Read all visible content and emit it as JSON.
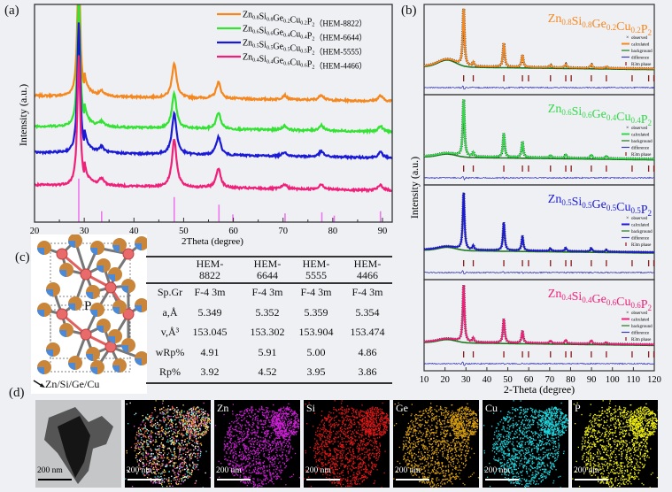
{
  "panel_labels": {
    "a": "(a)",
    "b": "(b)",
    "c": "(c)",
    "d": "(d)"
  },
  "colors": {
    "HEM-8822": "#f5871f",
    "HEM-6644": "#33e233",
    "HEM-5555": "#1a1ad6",
    "HEM-4466": "#f0207a",
    "reference": "#ee77ee",
    "tick_marks": "#8b1a1a",
    "difference": "#3b3bb5",
    "background_line": "#1f7a1f"
  },
  "chart_data": [
    {
      "panel": "a",
      "type": "line",
      "xlabel": "2Theta (degree)",
      "ylabel": "Intensity (a.u.)",
      "xlim": [
        20,
        92
      ],
      "xticks": [
        20,
        30,
        40,
        50,
        60,
        70,
        80,
        90
      ],
      "grid": false,
      "legend": "top-right",
      "series": [
        {
          "name": "Zn0.8Si0.8Ge0.2Cu0.2P2 (HEM-8822)",
          "formula": [
            [
              "Zn",
              "0.8"
            ],
            [
              "Si",
              "0.8"
            ],
            [
              "Ge",
              "0.2"
            ],
            [
              "Cu",
              "0.2"
            ],
            [
              "P",
              "2"
            ]
          ],
          "tag": "（HEM-8822）",
          "color": "#f5871f",
          "offset": 58,
          "peaks": [
            [
              28.9,
              60
            ],
            [
              33.5,
              2
            ],
            [
              48.1,
              16
            ],
            [
              57.0,
              7.5
            ],
            [
              70.3,
              2
            ],
            [
              77.7,
              2.5
            ],
            [
              89.6,
              2.5
            ]
          ]
        },
        {
          "name": "Zn0.6Si0.6Ge0.4Cu0.4P2 (HEM-6644)",
          "formula": [
            [
              "Zn",
              "0.6"
            ],
            [
              "Si",
              "0.6"
            ],
            [
              "Ge",
              "0.4"
            ],
            [
              "Cu",
              "0.4"
            ],
            [
              "P",
              "2"
            ]
          ],
          "tag": "（HEM-6644）",
          "color": "#33e233",
          "offset": 44,
          "peaks": [
            [
              28.9,
              60
            ],
            [
              33.5,
              2
            ],
            [
              48.1,
              16
            ],
            [
              57.0,
              7.5
            ],
            [
              70.3,
              2
            ],
            [
              77.7,
              2.5
            ],
            [
              89.6,
              2.5
            ]
          ]
        },
        {
          "name": "Zn0.5Si0.5Ge0.5Cu0.5P2 (HEM-5555)",
          "formula": [
            [
              "Zn",
              "0.5"
            ],
            [
              "Si",
              "0.5"
            ],
            [
              "Ge",
              "0.5"
            ],
            [
              "Cu",
              "0.5"
            ],
            [
              "P",
              "2"
            ]
          ],
          "tag": "（HEM-5555）",
          "color": "#1a1ad6",
          "offset": 32,
          "peaks": [
            [
              28.9,
              60
            ],
            [
              33.5,
              2.5
            ],
            [
              48.1,
              19
            ],
            [
              57.0,
              8.5
            ],
            [
              70.3,
              2
            ],
            [
              77.7,
              2.5
            ],
            [
              89.6,
              2.5
            ]
          ]
        },
        {
          "name": "Zn0.4Si0.4Ge0.6Cu0.6P2 (HEM-4466)",
          "formula": [
            [
              "Zn",
              "0.4"
            ],
            [
              "Si",
              "0.4"
            ],
            [
              "Ge",
              "0.6"
            ],
            [
              "Cu",
              "0.6"
            ],
            [
              "P",
              "2"
            ]
          ],
          "tag": "（HEM-4466）",
          "color": "#f0207a",
          "offset": 17,
          "peaks": [
            [
              28.9,
              60
            ],
            [
              33.5,
              3
            ],
            [
              48.1,
              22
            ],
            [
              57.0,
              9
            ],
            [
              70.3,
              2
            ],
            [
              77.7,
              2.5
            ],
            [
              89.6,
              2.5
            ]
          ]
        }
      ],
      "reference_sticks": [
        [
          28.9,
          20
        ],
        [
          33.5,
          5
        ],
        [
          48.1,
          11.5
        ],
        [
          57.1,
          8
        ],
        [
          59.9,
          3.5
        ],
        [
          70.4,
          4
        ],
        [
          77.8,
          4.5
        ],
        [
          80.3,
          3
        ],
        [
          89.6,
          5
        ]
      ]
    },
    {
      "panel": "b",
      "type": "line",
      "xlabel": "2-Theta (degree)",
      "ylabel": "Intensity (a.u.)",
      "xlim": [
        10,
        120
      ],
      "xticks": [
        10,
        20,
        30,
        40,
        50,
        60,
        70,
        80,
        90,
        100,
        110,
        120
      ],
      "legend_entries": [
        "observed",
        "calculated",
        "background",
        "difference",
        "R3m phase"
      ],
      "reflections": [
        28.9,
        33.5,
        48.1,
        57.0,
        59.9,
        70.4,
        77.7,
        80.3,
        89.9,
        97.1,
        109.4,
        117.3,
        119.8
      ],
      "subplots": [
        {
          "title": [
            [
              "Zn",
              "0.8"
            ],
            [
              "Si",
              "0.8"
            ],
            [
              "Ge",
              "0.2"
            ],
            [
              "Cu",
              "0.2"
            ],
            [
              "P",
              "2"
            ]
          ],
          "color": "#f5871f",
          "peaks": [
            [
              28.9,
              67
            ],
            [
              33.5,
              5
            ],
            [
              48.1,
              28
            ],
            [
              57.0,
              14
            ],
            [
              70.4,
              3
            ],
            [
              77.7,
              4
            ],
            [
              89.9,
              4
            ],
            [
              97.1,
              2
            ]
          ]
        },
        {
          "title": [
            [
              "Zn",
              "0.6"
            ],
            [
              "Si",
              "0.6"
            ],
            [
              "Ge",
              "0.4"
            ],
            [
              "Cu",
              "0.4"
            ],
            [
              "P",
              "2"
            ]
          ],
          "color": "#33d84a",
          "peaks": [
            [
              28.9,
              67
            ],
            [
              33.5,
              5
            ],
            [
              48.1,
              28
            ],
            [
              57.0,
              18
            ],
            [
              70.4,
              3
            ],
            [
              77.7,
              4
            ],
            [
              89.9,
              4
            ],
            [
              97.1,
              3
            ]
          ]
        },
        {
          "title": [
            [
              "Zn",
              "0.5"
            ],
            [
              "Si",
              "0.5"
            ],
            [
              "Ge",
              "0.5"
            ],
            [
              "Cu",
              "0.5"
            ],
            [
              "P",
              "2"
            ]
          ],
          "color": "#1a1ad6",
          "peaks": [
            [
              28.9,
              67
            ],
            [
              33.5,
              5
            ],
            [
              48.1,
              33
            ],
            [
              57.0,
              17
            ],
            [
              70.4,
              3
            ],
            [
              77.7,
              4
            ],
            [
              89.9,
              4
            ],
            [
              97.1,
              2
            ]
          ]
        },
        {
          "title": [
            [
              "Zn",
              "0.4"
            ],
            [
              "Si",
              "0.4"
            ],
            [
              "Ge",
              "0.6"
            ],
            [
              "Cu",
              "0.6"
            ],
            [
              "P",
              "2"
            ]
          ],
          "color": "#f0207a",
          "peaks": [
            [
              28.9,
              67
            ],
            [
              33.5,
              5
            ],
            [
              48.1,
              28
            ],
            [
              57.0,
              14
            ],
            [
              70.4,
              3
            ],
            [
              77.7,
              4
            ],
            [
              89.9,
              4
            ],
            [
              97.1,
              2
            ]
          ]
        }
      ]
    }
  ],
  "structure": {
    "p_label": "P",
    "metal_label": "Zn/Si/Ge/Cu"
  },
  "table": {
    "headers": [
      "HEM-\n8822",
      "HEM-\n6644",
      "HEM-\n5555",
      "HEM-\n4466"
    ],
    "rows": [
      {
        "label": "Sp.Gr",
        "values": [
          "F-4 3m",
          "F-4 3m",
          "F-4 3m",
          "F-4 3m"
        ]
      },
      {
        "label": "a,Å",
        "values": [
          "5.349",
          "5.352",
          "5.359",
          "5.354"
        ]
      },
      {
        "label": "v,Å³",
        "values": [
          "153.045",
          "153.302",
          "153.904",
          "153.474"
        ]
      },
      {
        "label": "wRp%",
        "values": [
          "4.91",
          "5.91",
          "5.00",
          "4.86"
        ]
      },
      {
        "label": "Rp%",
        "values": [
          "3.92",
          "4.52",
          "3.95",
          "3.86"
        ]
      }
    ]
  },
  "maps": [
    {
      "label": "",
      "scale": "200 nm",
      "kind": "tem"
    },
    {
      "label": "",
      "scale": "200 nm",
      "kind": "overlay"
    },
    {
      "label": "Zn",
      "scale": "200 nm",
      "color": "#d020d8"
    },
    {
      "label": "Si",
      "scale": "200 nm",
      "color": "#e01818"
    },
    {
      "label": "Ge",
      "scale": "200 nm",
      "color": "#d9a010"
    },
    {
      "label": "Cu",
      "scale": "200 nm",
      "color": "#20d8e0"
    },
    {
      "label": "P",
      "scale": "200 nm",
      "color": "#f0f010"
    }
  ]
}
